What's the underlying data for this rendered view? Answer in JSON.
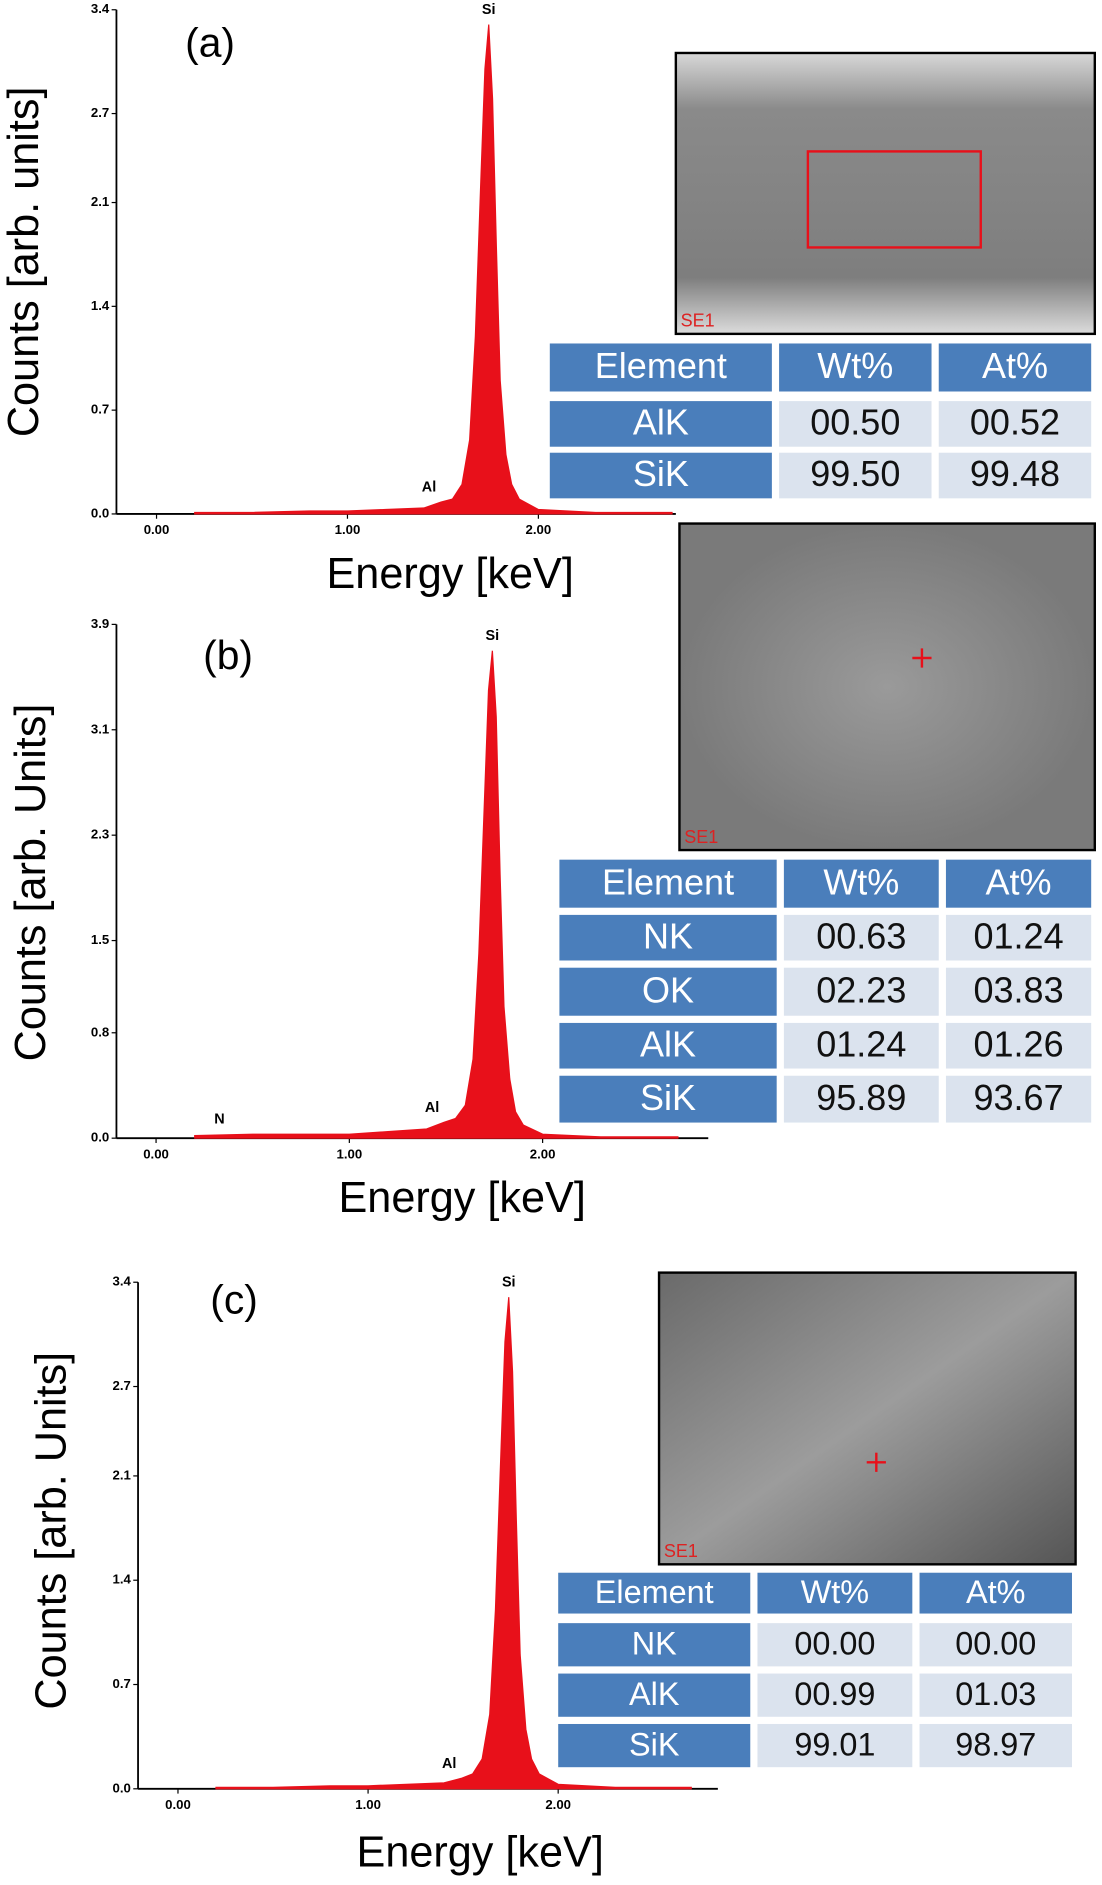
{
  "chart_data": [
    {
      "type": "area",
      "panel_label": "(a)",
      "x_label": "Energy [keV]",
      "y_label": "Counts [arb. units]",
      "color": "#e8101a",
      "x": [
        0.2,
        0.5,
        0.8,
        1.0,
        1.2,
        1.4,
        1.49,
        1.55,
        1.6,
        1.64,
        1.67,
        1.7,
        1.72,
        1.74,
        1.76,
        1.78,
        1.8,
        1.83,
        1.86,
        1.9,
        2.0,
        2.3,
        2.7
      ],
      "values": [
        0.01,
        0.01,
        0.02,
        0.02,
        0.03,
        0.04,
        0.08,
        0.1,
        0.2,
        0.5,
        1.2,
        2.3,
        3.0,
        3.3,
        2.8,
        1.8,
        0.9,
        0.4,
        0.2,
        0.1,
        0.03,
        0.01,
        0.01
      ],
      "peaks": [
        {
          "label": "Si",
          "x": 1.74
        },
        {
          "label": "Al",
          "x": 1.49
        }
      ],
      "xlim": [
        -0.21,
        2.72
      ],
      "ylim": [
        0,
        3.4
      ],
      "xticks": [
        {
          "value": 0,
          "label": "0.00"
        },
        {
          "value": 1,
          "label": "1.00"
        },
        {
          "value": 2,
          "label": "2.00"
        }
      ],
      "yticks": [
        {
          "value": 0,
          "label": "0.0"
        },
        0.7,
        1.4,
        2.1,
        2.7,
        3.4
      ],
      "image_label": "SE1",
      "table": {
        "columns": [
          "Element",
          "Wt%",
          "At%"
        ],
        "rows": [
          [
            "AlK",
            "00.50",
            "00.52"
          ],
          [
            "SiK",
            "99.50",
            "99.48"
          ]
        ]
      }
    },
    {
      "type": "area",
      "panel_label": "(b)",
      "x_label": "Energy [keV]",
      "y_label": "Counts [arb. Units]",
      "color": "#e8101a",
      "x": [
        0.2,
        0.5,
        0.8,
        1.0,
        1.2,
        1.4,
        1.49,
        1.55,
        1.6,
        1.64,
        1.67,
        1.7,
        1.72,
        1.74,
        1.76,
        1.78,
        1.8,
        1.83,
        1.86,
        1.9,
        2.0,
        2.3,
        2.7
      ],
      "values": [
        0.02,
        0.03,
        0.03,
        0.03,
        0.05,
        0.07,
        0.12,
        0.15,
        0.25,
        0.6,
        1.4,
        2.6,
        3.4,
        3.7,
        3.2,
        2.0,
        1.0,
        0.45,
        0.2,
        0.1,
        0.03,
        0.01,
        0.01
      ],
      "peaks": [
        {
          "label": "Si",
          "x": 1.74
        },
        {
          "label": "Al",
          "x": 1.49
        },
        {
          "label": "N",
          "x": 0.39
        }
      ],
      "xlim": [
        -0.205,
        2.857
      ],
      "ylim": [
        0,
        3.9
      ],
      "xticks": [
        {
          "value": 0,
          "label": "0.00"
        },
        {
          "value": 1,
          "label": "1.00"
        },
        {
          "value": 2,
          "label": "2.00"
        }
      ],
      "yticks": [
        {
          "value": 0,
          "label": "0.0"
        },
        0.8,
        1.5,
        2.3,
        3.1,
        3.9
      ],
      "image_label": "SE1",
      "table": {
        "columns": [
          "Element",
          "Wt%",
          "At%"
        ],
        "rows": [
          [
            "NK",
            "00.63",
            "01.24"
          ],
          [
            "OK",
            "02.23",
            "03.83"
          ],
          [
            "AlK",
            "01.24",
            "01.26"
          ],
          [
            "SiK",
            "95.89",
            "93.67"
          ]
        ]
      }
    },
    {
      "type": "area",
      "panel_label": "(c)",
      "x_label": "Energy [keV]",
      "y_label": "Counts [arb. Units]",
      "color": "#e8101a",
      "x": [
        0.2,
        0.5,
        0.8,
        1.0,
        1.2,
        1.4,
        1.49,
        1.55,
        1.6,
        1.64,
        1.67,
        1.7,
        1.72,
        1.74,
        1.76,
        1.78,
        1.8,
        1.83,
        1.86,
        1.9,
        2.0,
        2.3,
        2.7
      ],
      "values": [
        0.01,
        0.01,
        0.02,
        0.02,
        0.03,
        0.04,
        0.07,
        0.1,
        0.2,
        0.5,
        1.2,
        2.3,
        3.0,
        3.3,
        2.8,
        1.8,
        0.9,
        0.4,
        0.2,
        0.1,
        0.03,
        0.01,
        0.01
      ],
      "peaks": [
        {
          "label": "Si",
          "x": 1.74
        },
        {
          "label": "Al",
          "x": 1.49
        }
      ],
      "xlim": [
        -0.21,
        2.84
      ],
      "ylim": [
        0,
        3.4
      ],
      "xticks": [
        {
          "value": 0,
          "label": "0.00"
        },
        {
          "value": 1,
          "label": "1.00"
        },
        {
          "value": 2,
          "label": "2.00"
        }
      ],
      "yticks": [
        {
          "value": 0,
          "label": "0.0"
        },
        0.7,
        1.4,
        2.1,
        2.7,
        3.4
      ],
      "image_label": "SE1",
      "table": {
        "columns": [
          "Element",
          "Wt%",
          "At%"
        ],
        "rows": [
          [
            "NK",
            "00.00",
            "00.00"
          ],
          [
            "AlK",
            "00.99",
            "01.03"
          ],
          [
            "SiK",
            "99.01",
            "98.97"
          ]
        ]
      }
    }
  ]
}
